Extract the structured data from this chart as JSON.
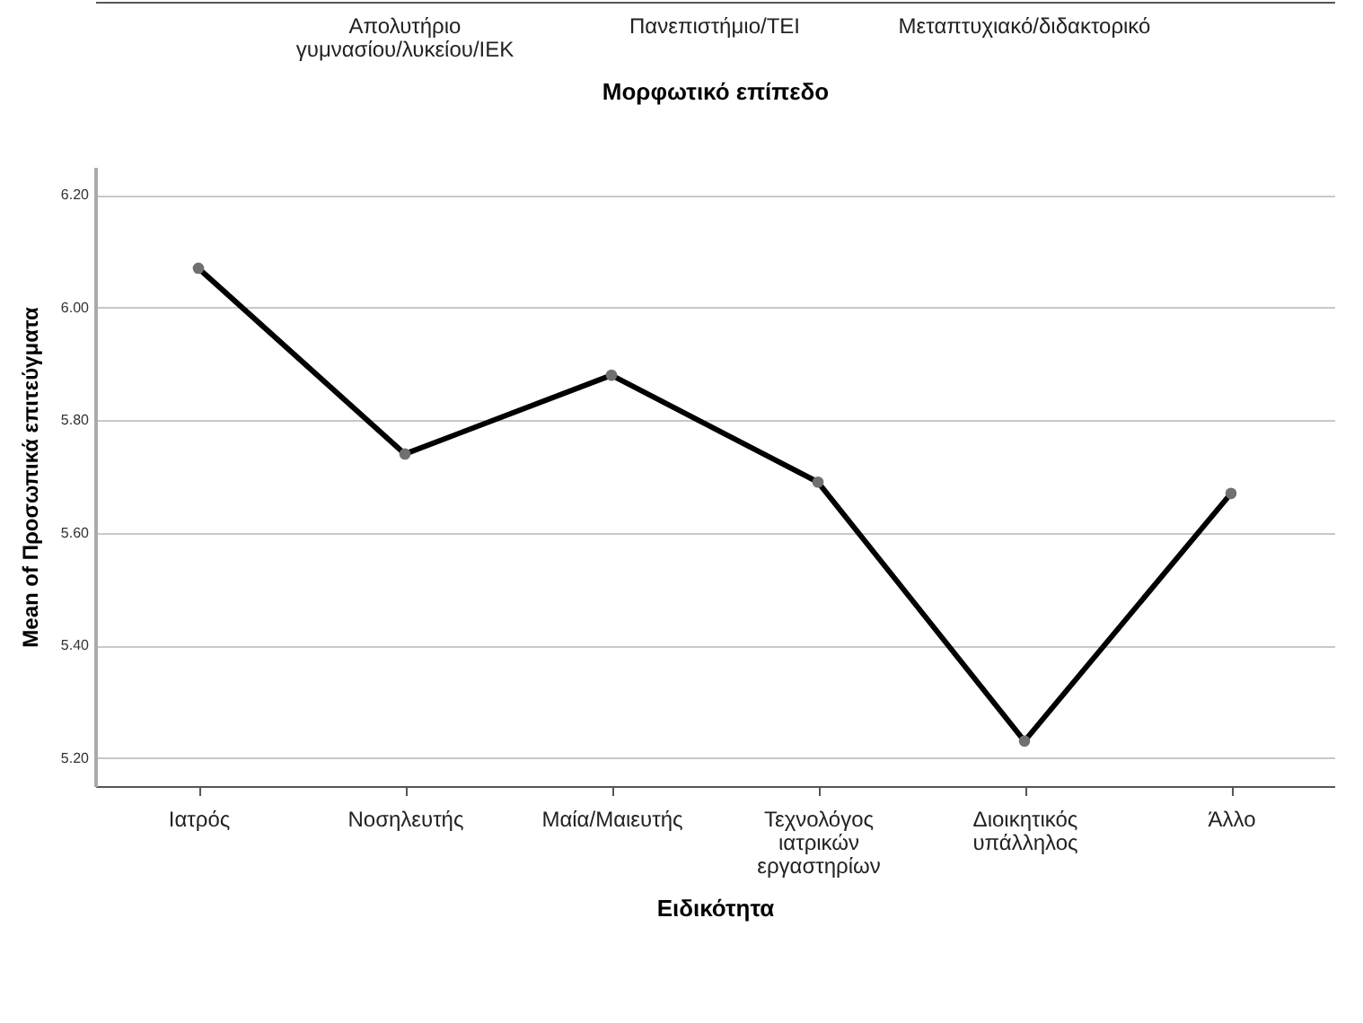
{
  "chart_data": [
    {
      "type": "other",
      "categories": [
        "Απολυτήριο γυμνασίου/λυκείου/ΙΕΚ",
        "Πανεπιστήμιο/ΤΕΙ",
        "Μεταπτυχιακό/διδακτορικό"
      ],
      "xlabel": "Μορφωτικό επίπεδο"
    },
    {
      "type": "line",
      "categories": [
        "Ιατρός",
        "Νοσηλευτής",
        "Μαία/Μαιευτής",
        "Τεχνολόγος ιατρικών εργαστηρίων",
        "Διοικητικός υπάλληλος",
        "Άλλο"
      ],
      "values": [
        6.07,
        5.74,
        5.88,
        5.69,
        5.23,
        5.67
      ],
      "color": "#000000",
      "xlabel": "Ειδικότητα",
      "ylabel": "Mean of Προσωπικά επιτεύγματα",
      "ylim": [
        5.15,
        6.25
      ],
      "yticks": [
        {
          "value": 5.2,
          "label": "5.20"
        },
        {
          "value": 5.4,
          "label": "5.40"
        },
        {
          "value": 5.6,
          "label": "5.60"
        },
        {
          "value": 5.8,
          "label": "5.80"
        },
        {
          "value": 6.0,
          "label": "6.00"
        },
        {
          "value": 6.2,
          "label": "6.20"
        }
      ],
      "grid": "y",
      "marker": "circle"
    }
  ]
}
